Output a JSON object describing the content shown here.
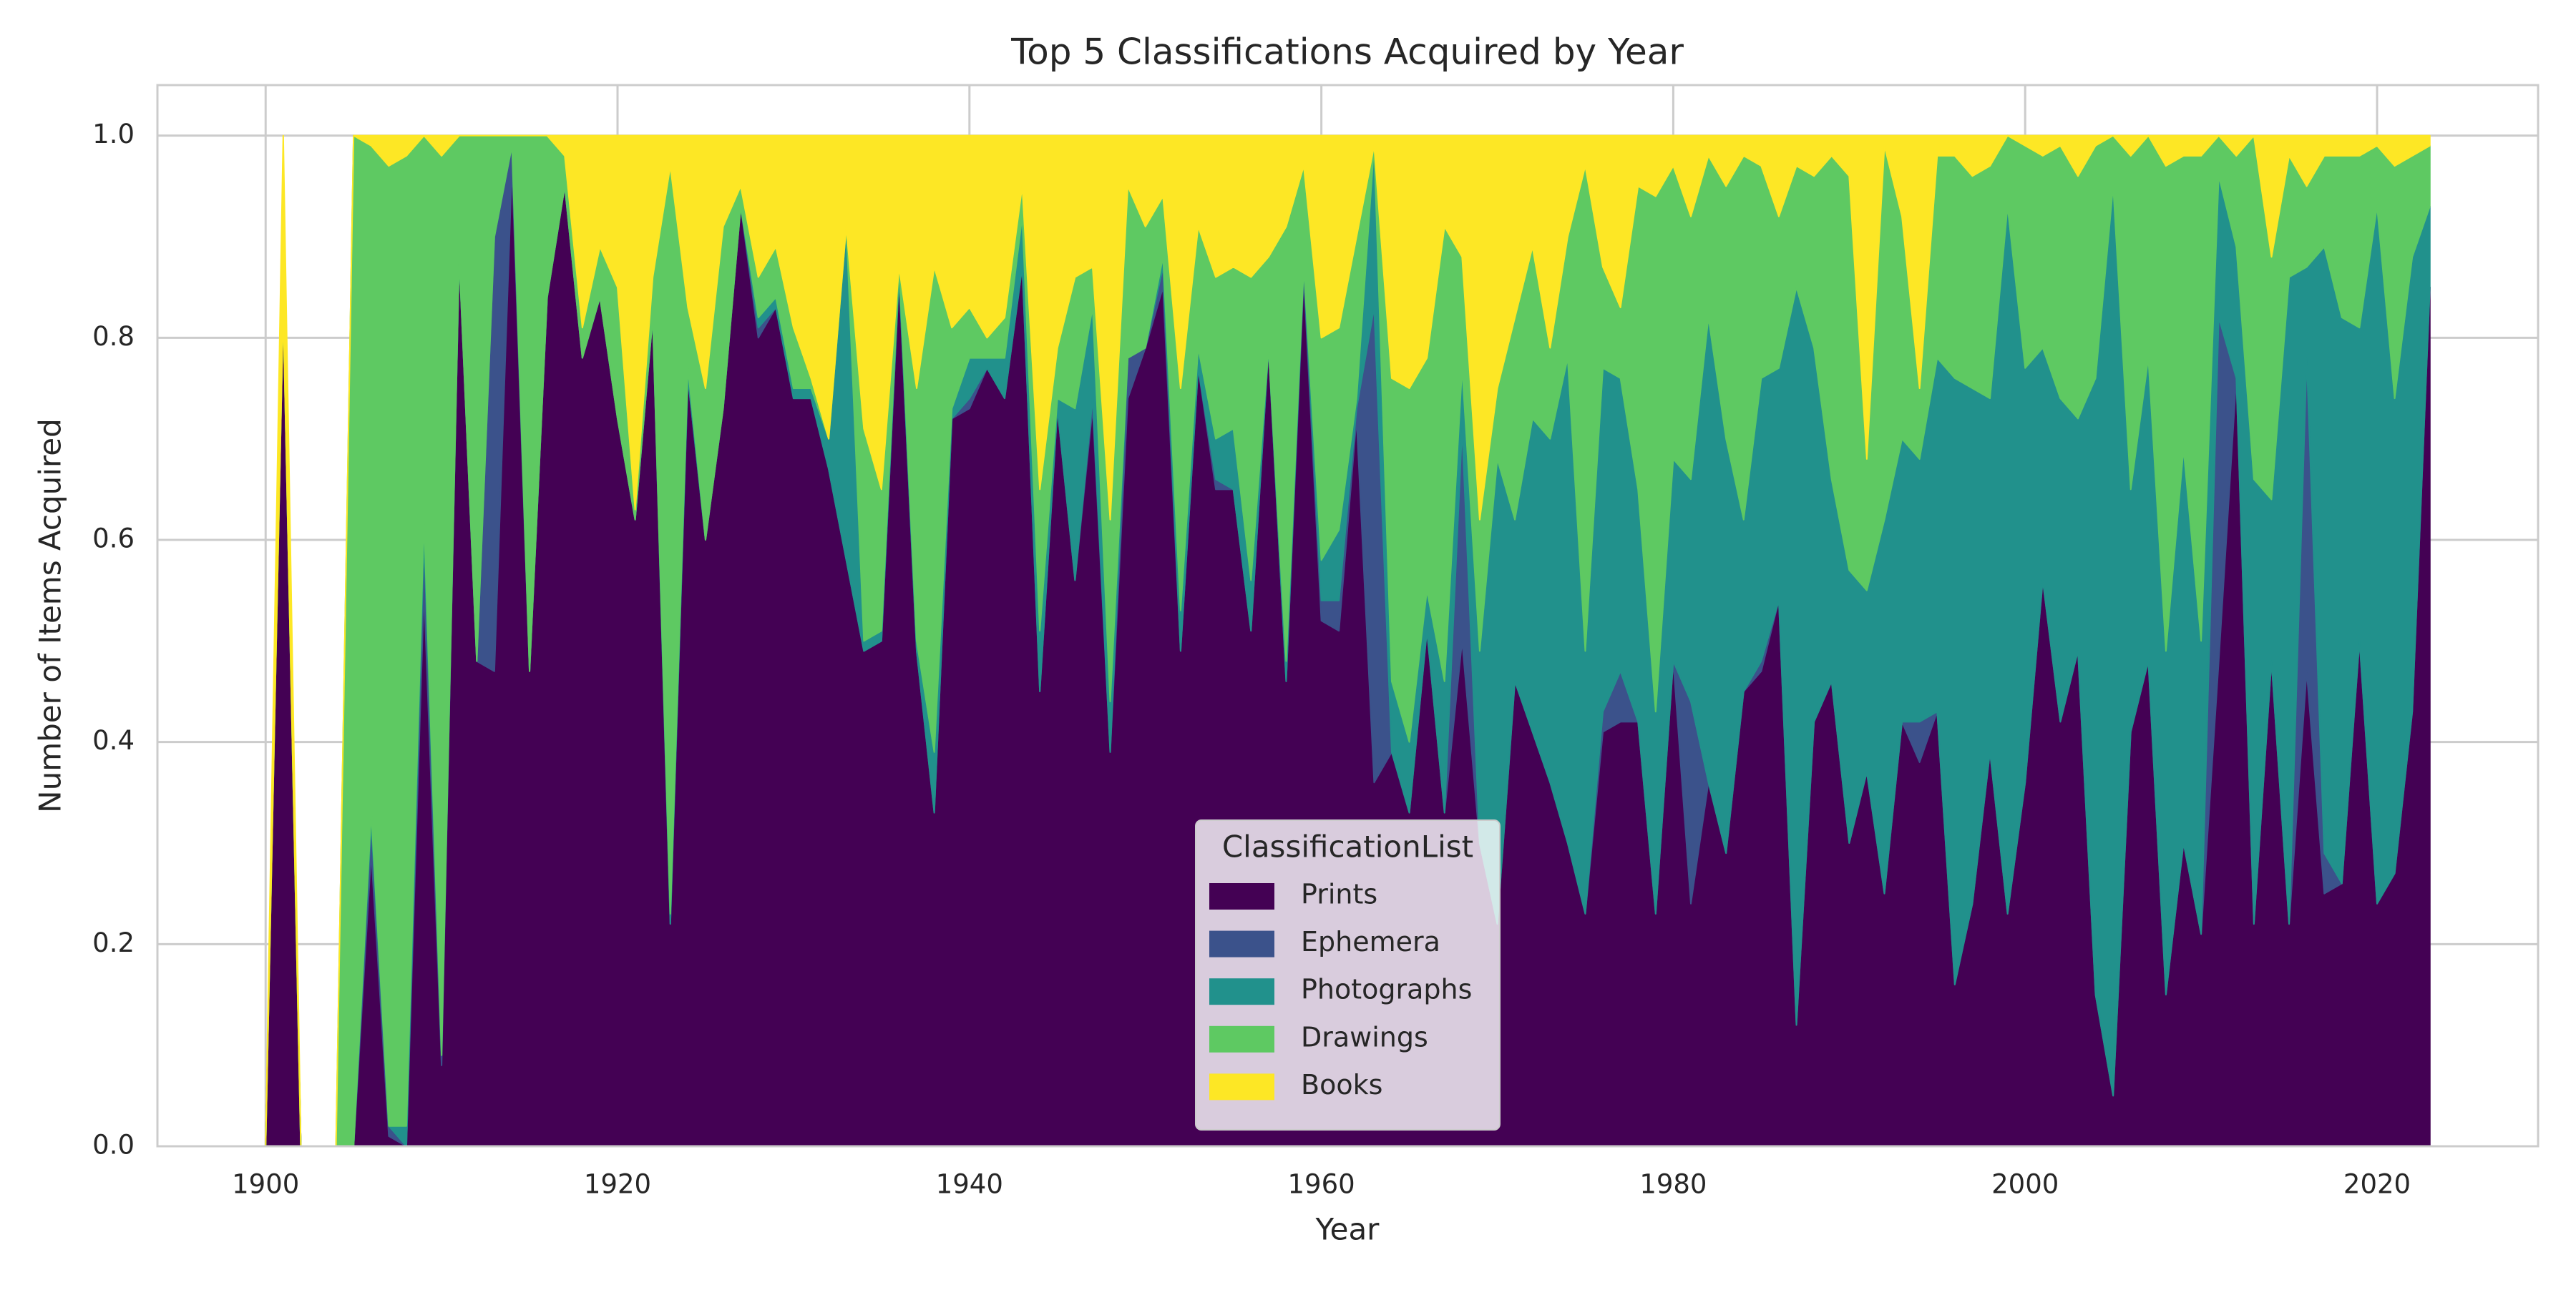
{
  "chart_data": {
    "type": "stacked_area",
    "title": "Top 5 Classifications Acquired by Year",
    "xlabel": "Year",
    "ylabel": "Number of Items Acquired",
    "x": [
      1900,
      1901,
      1902,
      1903,
      1904,
      1905,
      1906,
      1907,
      1908,
      1909,
      1910,
      1911,
      1912,
      1913,
      1914,
      1915,
      1916,
      1917,
      1918,
      1919,
      1920,
      1921,
      1922,
      1923,
      1924,
      1925,
      1926,
      1927,
      1928,
      1929,
      1930,
      1931,
      1932,
      1933,
      1934,
      1935,
      1936,
      1937,
      1938,
      1939,
      1940,
      1941,
      1942,
      1943,
      1944,
      1945,
      1946,
      1947,
      1948,
      1949,
      1950,
      1951,
      1952,
      1953,
      1954,
      1955,
      1956,
      1957,
      1958,
      1959,
      1960,
      1961,
      1962,
      1963,
      1964,
      1965,
      1966,
      1967,
      1968,
      1969,
      1970,
      1971,
      1972,
      1973,
      1974,
      1975,
      1976,
      1977,
      1978,
      1979,
      1980,
      1981,
      1982,
      1983,
      1984,
      1985,
      1986,
      1987,
      1988,
      1989,
      1990,
      1991,
      1992,
      1993,
      1994,
      1995,
      1996,
      1997,
      1998,
      1999,
      2000,
      2001,
      2002,
      2003,
      2004,
      2005,
      2006,
      2007,
      2008,
      2009,
      2010,
      2011,
      2012,
      2013,
      2014,
      2015,
      2016,
      2017,
      2018,
      2019,
      2020,
      2021,
      2022,
      2023
    ],
    "series": [
      {
        "name": "Prints",
        "color": "#440154",
        "values": [
          0,
          0.83,
          0,
          0,
          0,
          0,
          0.29,
          0.01,
          0,
          0.55,
          0.08,
          0.88,
          0.48,
          0.47,
          0.97,
          0.47,
          0.84,
          0.95,
          0.78,
          0.84,
          0.72,
          0.62,
          0.82,
          0.22,
          0.76,
          0.6,
          0.73,
          0.93,
          0.8,
          0.83,
          0.74,
          0.74,
          0.67,
          0.58,
          0.49,
          0.5,
          0.86,
          0.49,
          0.33,
          0.72,
          0.73,
          0.77,
          0.74,
          0.87,
          0.45,
          0.73,
          0.56,
          0.73,
          0.39,
          0.74,
          0.79,
          0.85,
          0.49,
          0.77,
          0.65,
          0.65,
          0.51,
          0.79,
          0.46,
          0.86,
          0.52,
          0.51,
          0.72,
          0.36,
          0.39,
          0.33,
          0.51,
          0.33,
          0.5,
          0.3,
          0.22,
          0.46,
          0.41,
          0.36,
          0.3,
          0.23,
          0.41,
          0.42,
          0.42,
          0.23,
          0.48,
          0.24,
          0.36,
          0.29,
          0.45,
          0.47,
          0.54,
          0.12,
          0.42,
          0.46,
          0.3,
          0.37,
          0.25,
          0.42,
          0.38,
          0.43,
          0.16,
          0.24,
          0.39,
          0.23,
          0.36,
          0.56,
          0.42,
          0.49,
          0.15,
          0.05,
          0.41,
          0.48,
          0.15,
          0.3,
          0.21,
          0.48,
          0.76,
          0.22,
          0.48,
          0.22,
          0.47,
          0.25,
          0.26,
          0.5,
          0.24,
          0.27,
          0.43,
          0.85
        ]
      },
      {
        "name": "Ephemera",
        "color": "#3b528b",
        "values": [
          0,
          0,
          0,
          0,
          0,
          0,
          0.03,
          0.01,
          0,
          0.05,
          0.01,
          0,
          0,
          0.43,
          0.02,
          0,
          0,
          0,
          0,
          0,
          0,
          0,
          0,
          0,
          0,
          0,
          0,
          0,
          0.01,
          0,
          0,
          0,
          0,
          0,
          0,
          0,
          0,
          0,
          0,
          0,
          0.01,
          0,
          0,
          0,
          0,
          0,
          0,
          0.01,
          0,
          0.04,
          0,
          0.02,
          0,
          0,
          0.01,
          0,
          0,
          0,
          0,
          0.01,
          0.02,
          0.03,
          0.01,
          0.47,
          0,
          0,
          0,
          0,
          0.21,
          0,
          0,
          0,
          0,
          0,
          0,
          0,
          0.02,
          0.05,
          0,
          0,
          0,
          0.2,
          0,
          0,
          0,
          0.01,
          0,
          0,
          0,
          0,
          0,
          0,
          0,
          0,
          0.04,
          0,
          0,
          0,
          0,
          0,
          0,
          0,
          0,
          0,
          0,
          0,
          0,
          0,
          0,
          0,
          0,
          0.34,
          0,
          0,
          0,
          0,
          0.31,
          0.04,
          0,
          0,
          0,
          0,
          0,
          0
        ]
      },
      {
        "name": "Photographs",
        "color": "#21918c",
        "values": [
          0,
          0,
          0,
          0,
          0,
          0,
          0.01,
          0,
          0.02,
          0.02,
          0,
          0,
          0,
          0,
          0,
          0,
          0,
          0,
          0,
          0,
          0,
          0,
          0,
          0.01,
          0.01,
          0,
          0,
          0,
          0.01,
          0.01,
          0.01,
          0.01,
          0.03,
          0.33,
          0.01,
          0.01,
          0.01,
          0.01,
          0.06,
          0.01,
          0.04,
          0.01,
          0.04,
          0.05,
          0.06,
          0.01,
          0.17,
          0.09,
          0.05,
          0,
          0,
          0.01,
          0.04,
          0.02,
          0.04,
          0.06,
          0.05,
          0,
          0.02,
          0,
          0.04,
          0.07,
          0.01,
          0.16,
          0.07,
          0.07,
          0.04,
          0.13,
          0.06,
          0.19,
          0.46,
          0.16,
          0.31,
          0.34,
          0.48,
          0.26,
          0.34,
          0.29,
          0.23,
          0.2,
          0.2,
          0.22,
          0.46,
          0.41,
          0.17,
          0.28,
          0.23,
          0.73,
          0.37,
          0.2,
          0.27,
          0.18,
          0.37,
          0.28,
          0.26,
          0.35,
          0.6,
          0.51,
          0.35,
          0.7,
          0.41,
          0.23,
          0.32,
          0.23,
          0.61,
          0.9,
          0.24,
          0.3,
          0.34,
          0.39,
          0.29,
          0.14,
          0.13,
          0.44,
          0.16,
          0.64,
          0.09,
          0.6,
          0.56,
          0.31,
          0.69,
          0.47,
          0.45,
          0.08
        ]
      },
      {
        "name": "Drawings",
        "color": "#5ec962",
        "values": [
          0,
          0,
          0,
          0,
          0,
          1,
          0.66,
          0.95,
          0.96,
          0.38,
          0.89,
          0.12,
          0.52,
          0.1,
          0.01,
          0.53,
          0.16,
          0.03,
          0.03,
          0.05,
          0.13,
          0.01,
          0.04,
          0.74,
          0.06,
          0.15,
          0.18,
          0.02,
          0.04,
          0.05,
          0.06,
          0.01,
          0,
          0,
          0.21,
          0.14,
          0,
          0.25,
          0.48,
          0.08,
          0.05,
          0.02,
          0.04,
          0.03,
          0.14,
          0.05,
          0.13,
          0.04,
          0.18,
          0.17,
          0.12,
          0.06,
          0.22,
          0.12,
          0.16,
          0.16,
          0.3,
          0.09,
          0.43,
          0.1,
          0.22,
          0.2,
          0.16,
          0,
          0.3,
          0.35,
          0.23,
          0.45,
          0.11,
          0.13,
          0.07,
          0.2,
          0.17,
          0.09,
          0.12,
          0.48,
          0.1,
          0.07,
          0.3,
          0.51,
          0.29,
          0.26,
          0.16,
          0.25,
          0.36,
          0.21,
          0.15,
          0.12,
          0.17,
          0.32,
          0.39,
          0.13,
          0.37,
          0.22,
          0.07,
          0.2,
          0.22,
          0.21,
          0.23,
          0.07,
          0.22,
          0.19,
          0.25,
          0.24,
          0.23,
          0.05,
          0.33,
          0.22,
          0.48,
          0.29,
          0.48,
          0.04,
          0.09,
          0.34,
          0.24,
          0.12,
          0.08,
          0.09,
          0.16,
          0.17,
          0.06,
          0.23,
          0.1,
          0.06
        ]
      },
      {
        "name": "Books",
        "color": "#fde725",
        "values": [
          0,
          0.17,
          0,
          0,
          0,
          0,
          0.01,
          0.03,
          0.02,
          0,
          0.02,
          0,
          0,
          0,
          0,
          0,
          0,
          0.02,
          0.19,
          0.11,
          0.15,
          0.37,
          0.14,
          0.03,
          0.17,
          0.25,
          0.09,
          0.05,
          0.14,
          0.11,
          0.19,
          0.24,
          0.3,
          0.09,
          0.29,
          0.35,
          0.13,
          0.25,
          0.13,
          0.19,
          0.17,
          0.2,
          0.18,
          0.05,
          0.35,
          0.21,
          0.14,
          0.13,
          0.38,
          0.05,
          0.09,
          0.06,
          0.25,
          0.09,
          0.14,
          0.13,
          0.14,
          0.12,
          0.09,
          0.03,
          0.2,
          0.19,
          0.1,
          0.01,
          0.24,
          0.25,
          0.22,
          0.09,
          0.12,
          0.38,
          0.25,
          0.18,
          0.11,
          0.21,
          0.1,
          0.03,
          0.13,
          0.17,
          0.05,
          0.06,
          0.03,
          0.08,
          0.02,
          0.05,
          0.02,
          0.03,
          0.08,
          0.03,
          0.04,
          0.02,
          0.04,
          0.32,
          0.01,
          0.08,
          0.25,
          0.02,
          0.02,
          0.04,
          0.03,
          0,
          0.01,
          0.02,
          0.01,
          0.04,
          0.01,
          0,
          0.02,
          0,
          0.03,
          0.02,
          0.02,
          0,
          0.02,
          0,
          0.12,
          0.02,
          0.05,
          0.02,
          0.02,
          0.02,
          0.01,
          0.03,
          0.02,
          0.01
        ]
      }
    ],
    "xlim": [
      1893.85,
      2029.15
    ],
    "xticks": [
      1900,
      1920,
      1940,
      1960,
      1980,
      2000,
      2020
    ],
    "ylim": [
      0,
      1.05
    ],
    "yticks": [
      {
        "value": 0,
        "label": "0.0"
      },
      0.2,
      0.4,
      0.6,
      0.8,
      {
        "value": 1,
        "label": "1.0"
      }
    ],
    "grid": true,
    "legend_title": "ClassificationList",
    "legend_position": "lower center"
  }
}
